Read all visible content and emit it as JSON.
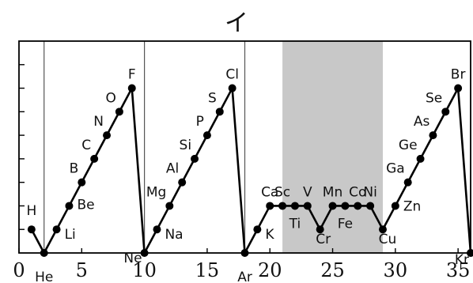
{
  "chart_data": {
    "type": "line",
    "title": "イ",
    "xlabel": "",
    "ylabel": "",
    "xlim": [
      0,
      36
    ],
    "ylim": [
      0,
      9
    ],
    "x_ticks": [
      0,
      5,
      10,
      15,
      20,
      25,
      30,
      35
    ],
    "x_tick_labels": [
      "0",
      "5",
      "10",
      "15",
      "20",
      "25",
      "30",
      "35"
    ],
    "grid": "vertical lines at atomic numbers 2, 10 and 18; shaded band from 21 to 29",
    "shaded_band": [
      21,
      29
    ],
    "shade_color": "#c8c8c8",
    "line_color": "#000000",
    "series": [
      {
        "values": [
          {
            "x": 1,
            "y": 1,
            "label": "H"
          },
          {
            "x": 2,
            "y": 0,
            "label": "He"
          },
          {
            "x": 3,
            "y": 1,
            "label": "Li"
          },
          {
            "x": 4,
            "y": 2,
            "label": "Be"
          },
          {
            "x": 5,
            "y": 3,
            "label": "B"
          },
          {
            "x": 6,
            "y": 4,
            "label": "C"
          },
          {
            "x": 7,
            "y": 5,
            "label": "N"
          },
          {
            "x": 8,
            "y": 6,
            "label": "O"
          },
          {
            "x": 9,
            "y": 7,
            "label": "F"
          },
          {
            "x": 10,
            "y": 0,
            "label": "Ne"
          },
          {
            "x": 11,
            "y": 1,
            "label": "Na"
          },
          {
            "x": 12,
            "y": 2,
            "label": "Mg"
          },
          {
            "x": 13,
            "y": 3,
            "label": "Al"
          },
          {
            "x": 14,
            "y": 4,
            "label": "Si"
          },
          {
            "x": 15,
            "y": 5,
            "label": "P"
          },
          {
            "x": 16,
            "y": 6,
            "label": "S"
          },
          {
            "x": 17,
            "y": 7,
            "label": "Cl"
          },
          {
            "x": 18,
            "y": 0,
            "label": "Ar"
          },
          {
            "x": 19,
            "y": 1,
            "label": "K"
          },
          {
            "x": 20,
            "y": 2,
            "label": "Ca"
          },
          {
            "x": 21,
            "y": 2,
            "label": "Sc"
          },
          {
            "x": 22,
            "y": 2,
            "label": "Ti"
          },
          {
            "x": 23,
            "y": 2,
            "label": "V"
          },
          {
            "x": 24,
            "y": 1,
            "label": "Cr"
          },
          {
            "x": 25,
            "y": 2,
            "label": "Mn"
          },
          {
            "x": 26,
            "y": 2,
            "label": "Fe"
          },
          {
            "x": 27,
            "y": 2,
            "label": "Co"
          },
          {
            "x": 28,
            "y": 2,
            "label": "Ni"
          },
          {
            "x": 29,
            "y": 1,
            "label": "Cu"
          },
          {
            "x": 30,
            "y": 2,
            "label": "Zn"
          },
          {
            "x": 31,
            "y": 3,
            "label": "Ga"
          },
          {
            "x": 32,
            "y": 4,
            "label": "Ge"
          },
          {
            "x": 33,
            "y": 5,
            "label": "As"
          },
          {
            "x": 34,
            "y": 6,
            "label": "Se"
          },
          {
            "x": 35,
            "y": 7,
            "label": "Br"
          },
          {
            "x": 36,
            "y": 0,
            "label": "Kr"
          }
        ]
      }
    ]
  }
}
